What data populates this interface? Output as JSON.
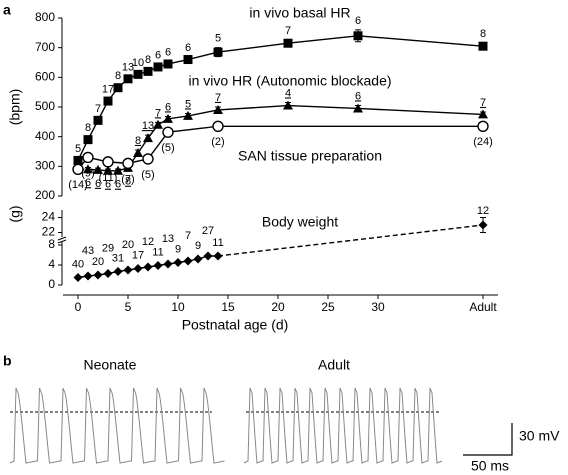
{
  "panel_labels": [
    "a",
    "b"
  ],
  "chart_data": [
    {
      "type": "line",
      "ylabel": "(bpm)",
      "xlim": [
        -1.5,
        42
      ],
      "ylim": [
        200,
        800
      ],
      "yticks": [
        200,
        300,
        400,
        500,
        600,
        700,
        800
      ],
      "series": [
        {
          "name": "in vivo basal HR",
          "color": "#000000",
          "marker": "square",
          "x": [
            0,
            1,
            2,
            3,
            4,
            5,
            6,
            7,
            8,
            9,
            11,
            14,
            21,
            28,
            40.5
          ],
          "values": [
            320,
            390,
            455,
            520,
            565,
            595,
            610,
            620,
            635,
            645,
            660,
            685,
            715,
            740,
            705
          ],
          "errors": [
            8,
            8,
            8,
            8,
            8,
            8,
            8,
            8,
            8,
            8,
            8,
            15,
            10,
            20,
            10
          ],
          "n_labels": [
            5,
            8,
            7,
            17,
            8,
            13,
            10,
            8,
            6,
            6,
            6,
            5,
            7,
            6,
            8
          ]
        },
        {
          "name": "in vivo HR (Autonomic blockade)",
          "color": "#000000",
          "marker": "triangle",
          "x": [
            1,
            2,
            3,
            4,
            5,
            6,
            7,
            8,
            9,
            11,
            14,
            21,
            28,
            40.5
          ],
          "values": [
            290,
            288,
            285,
            285,
            295,
            345,
            395,
            440,
            460,
            470,
            490,
            505,
            495,
            475
          ],
          "errors": [
            6,
            6,
            6,
            6,
            6,
            10,
            10,
            8,
            8,
            8,
            10,
            10,
            10,
            8
          ],
          "n_labels": [
            6,
            6,
            6,
            6,
            8,
            8,
            13,
            7,
            6,
            5,
            7,
            4,
            6,
            7
          ],
          "n_underline": true
        },
        {
          "name": "SAN tissue preparation",
          "color": "#000000",
          "marker": "circle",
          "x": [
            0,
            1,
            3,
            5,
            7,
            9,
            14,
            40.5
          ],
          "values": [
            290,
            330,
            315,
            310,
            325,
            415,
            435,
            435
          ],
          "errors": [
            8,
            8,
            8,
            8,
            8,
            8,
            8,
            6
          ],
          "n_labels": [
            "(14)",
            "(9)",
            "(11)",
            "(7)",
            "(5)",
            "(5)",
            "(2)",
            "(24)"
          ]
        }
      ]
    },
    {
      "type": "line",
      "ylabel": "(g)",
      "xlabel": "Postnatal age (d)",
      "xlim": [
        -1.5,
        42
      ],
      "ylim": [
        0,
        25
      ],
      "axis_break": [
        9,
        21
      ],
      "yticks": [
        0,
        4,
        8,
        22,
        24
      ],
      "xticks": [
        0,
        5,
        10,
        15,
        20,
        25,
        30,
        {
          "value": 40.5,
          "label": "Adult"
        }
      ],
      "series": [
        {
          "name": "Body weight",
          "color": "#000000",
          "marker": "diamond",
          "dashed_last_segment": true,
          "x": [
            0,
            1,
            2,
            3,
            4,
            5,
            6,
            7,
            8,
            9,
            10,
            11,
            12,
            13,
            14,
            40.5
          ],
          "values": [
            1.5,
            1.8,
            2.0,
            2.3,
            2.7,
            3.0,
            3.3,
            3.6,
            3.9,
            4.2,
            4.5,
            4.8,
            5.2,
            5.8,
            5.8,
            23
          ],
          "errors": [
            0.1,
            0.1,
            0.1,
            0.1,
            0.1,
            0.1,
            0.1,
            0.1,
            0.1,
            0.1,
            0.1,
            0.1,
            0.1,
            0.2,
            0.2,
            1
          ],
          "n_labels": [
            40,
            43,
            20,
            29,
            31,
            20,
            17,
            12,
            11,
            13,
            9,
            7,
            9,
            27,
            11,
            12
          ]
        }
      ]
    }
  ],
  "trace_titles": [
    "Neonate",
    "Adult"
  ],
  "scale_bar": {
    "voltage": "30 mV",
    "time": "50 ms"
  }
}
